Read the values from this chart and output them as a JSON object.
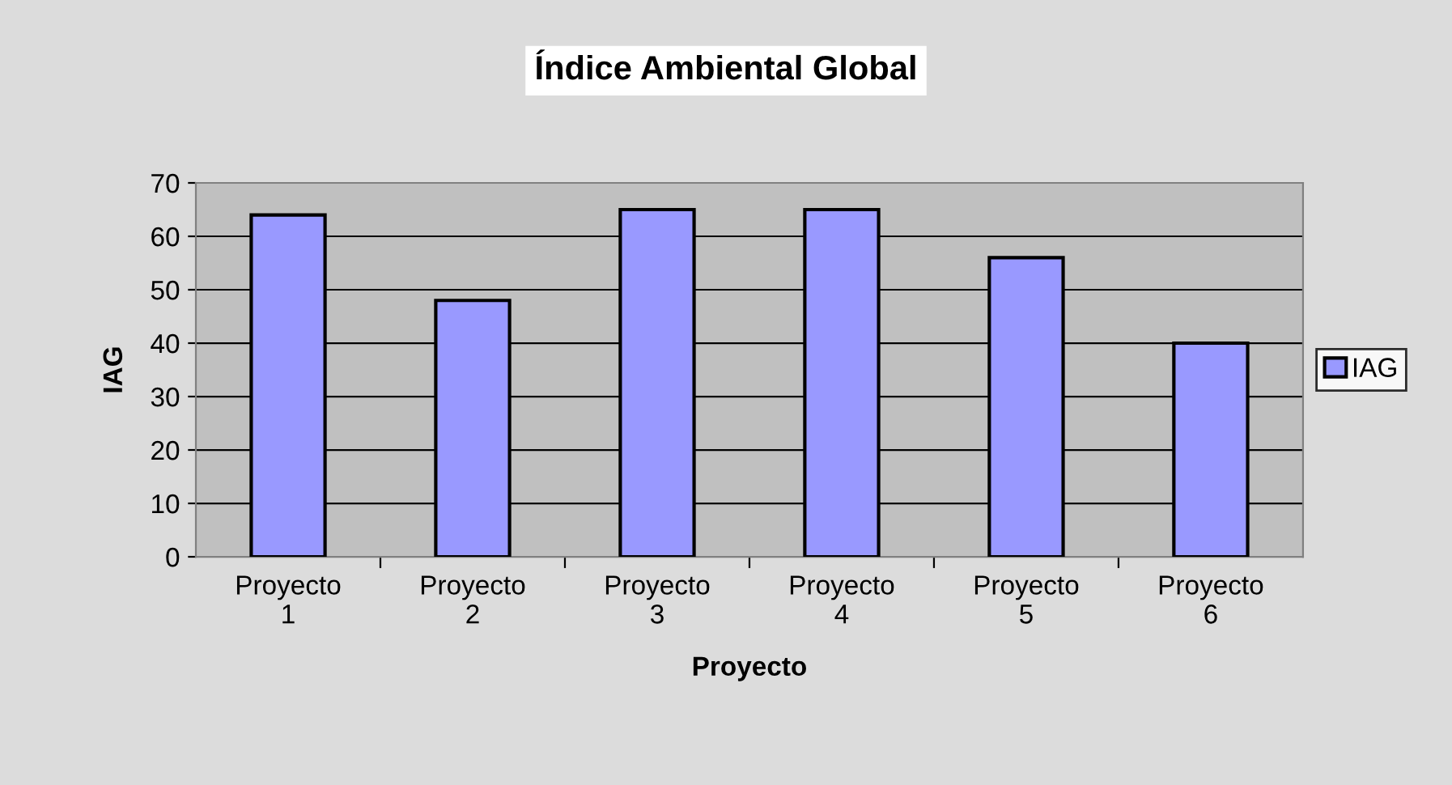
{
  "chart_data": {
    "type": "bar",
    "title": "Índice Ambiental Global",
    "xlabel": "Proyecto",
    "ylabel": "IAG",
    "categories": [
      "Proyecto\n1",
      "Proyecto\n2",
      "Proyecto\n3",
      "Proyecto\n4",
      "Proyecto\n5",
      "Proyecto\n6"
    ],
    "series": [
      {
        "name": "IAG",
        "color": "#9999ff",
        "values": [
          64,
          48,
          65,
          65,
          56,
          40
        ]
      }
    ],
    "ylim": [
      0,
      70
    ],
    "yticks": [
      0,
      10,
      20,
      30,
      40,
      50,
      60,
      70
    ],
    "grid": "y",
    "legend": "right"
  }
}
